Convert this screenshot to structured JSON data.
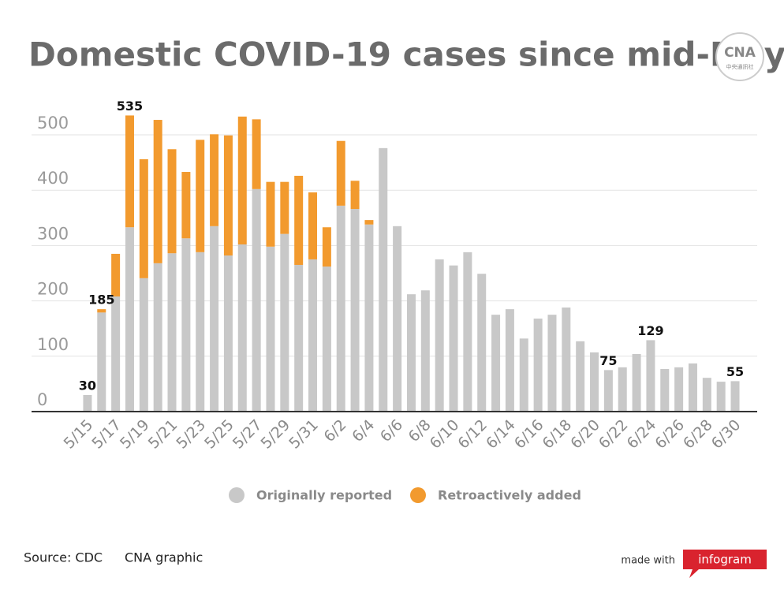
{
  "chart_data": {
    "type": "stacked_bar",
    "title": "Domestic COVID-19 cases since mid-May",
    "logo": {
      "text": "CNA",
      "subtext": "中央通訊社"
    },
    "categories": [
      "5/15",
      null,
      "5/17",
      null,
      "5/19",
      null,
      "5/21",
      null,
      "5/23",
      null,
      "5/25",
      null,
      "5/27",
      null,
      "5/29",
      null,
      "5/31",
      null,
      "6/2",
      null,
      "6/4",
      null,
      "6/6",
      null,
      "6/8",
      null,
      "6/10",
      null,
      "6/12",
      null,
      "6/14",
      null,
      "6/16",
      null,
      "6/18",
      null,
      "6/20",
      null,
      "6/22",
      null,
      "6/24",
      null,
      "6/26",
      null,
      "6/28",
      null,
      "6/30"
    ],
    "series": [
      {
        "name": "Originally reported",
        "color": "#c8c8c8",
        "values": [
          30,
          179,
          208,
          333,
          241,
          268,
          286,
          313,
          288,
          335,
          282,
          302,
          402,
          298,
          321,
          265,
          275,
          262,
          372,
          366,
          338,
          476,
          335,
          212,
          219,
          275,
          264,
          288,
          249,
          175,
          185,
          132,
          168,
          175,
          188,
          127,
          107,
          75,
          80,
          104,
          129,
          77,
          80,
          87,
          61,
          54,
          55
        ]
      },
      {
        "name": "Retroactively added",
        "color": "#f29a2e",
        "values": [
          0,
          6,
          77,
          202,
          215,
          259,
          188,
          120,
          203,
          166,
          217,
          231,
          126,
          117,
          94,
          161,
          121,
          71,
          117,
          51,
          8,
          0,
          0,
          0,
          0,
          0,
          0,
          0,
          0,
          0,
          0,
          0,
          0,
          0,
          0,
          0,
          0,
          0,
          0,
          0,
          0,
          0,
          0,
          0,
          0,
          0,
          0
        ]
      }
    ],
    "total_labels": [
      30,
      185,
      null,
      535,
      null,
      null,
      null,
      null,
      null,
      null,
      null,
      null,
      null,
      null,
      null,
      null,
      null,
      null,
      null,
      null,
      null,
      null,
      null,
      null,
      null,
      null,
      null,
      null,
      null,
      null,
      null,
      null,
      null,
      null,
      null,
      null,
      null,
      75,
      null,
      null,
      129,
      null,
      null,
      null,
      null,
      null,
      55
    ],
    "ylim": [
      0,
      550
    ],
    "yticks": [
      0,
      100,
      200,
      300,
      400,
      500
    ],
    "grid": true,
    "legend": "bottom",
    "source": "Source: CDC",
    "credit": "CNA graphic",
    "made_with": "made with",
    "brand": "infogram"
  }
}
